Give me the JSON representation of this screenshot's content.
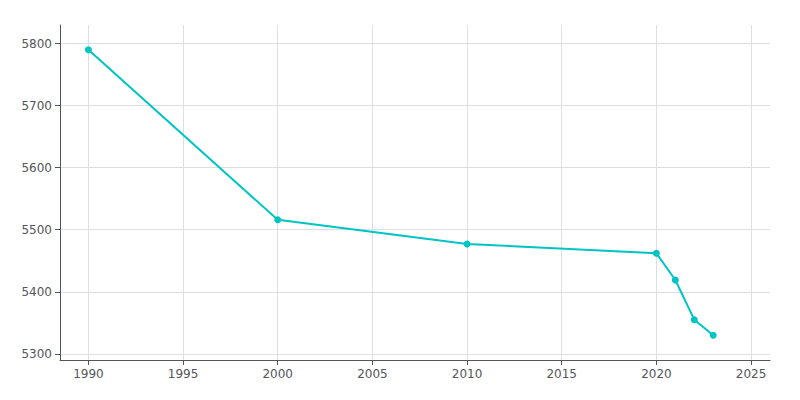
{
  "chart_data": {
    "type": "line",
    "x": [
      1990,
      2000,
      2010,
      2020,
      2021,
      2022,
      2023
    ],
    "values": [
      5790,
      5516,
      5477,
      5462,
      5419,
      5355,
      5330
    ],
    "color": "#00C4C4",
    "marker": "circle",
    "xlim": [
      1988.5,
      2026
    ],
    "ylim": [
      5290,
      5830
    ],
    "xticks": [
      1990,
      1995,
      2000,
      2005,
      2010,
      2015,
      2020,
      2025
    ],
    "yticks": [
      5300,
      5400,
      5500,
      5600,
      5700,
      5800
    ],
    "grid": true
  }
}
